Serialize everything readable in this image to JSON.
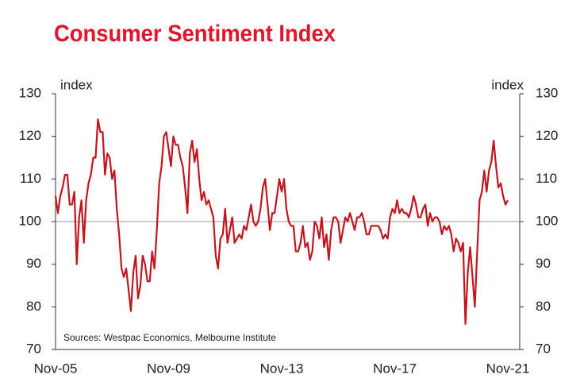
{
  "chart_data": {
    "type": "line",
    "title": "Consumer Sentiment Index",
    "y_label": "index",
    "y2_label": "index",
    "annotation": "Sources: Westpac Economics, Melbourne Institute",
    "categories": [
      "Nov-05",
      null,
      null,
      null,
      null,
      null,
      null,
      null,
      null,
      null,
      null,
      null,
      null,
      null,
      null,
      null,
      null,
      null,
      null,
      null,
      null,
      null,
      null,
      null,
      null,
      null,
      null,
      null,
      null,
      null,
      null,
      null,
      null,
      null,
      null,
      null,
      null,
      null,
      null,
      null,
      null,
      null,
      null,
      null,
      null,
      null,
      null,
      null,
      "Nov-09",
      null,
      null,
      null,
      null,
      null,
      null,
      null,
      null,
      null,
      null,
      null,
      null,
      null,
      null,
      null,
      null,
      null,
      null,
      null,
      null,
      null,
      null,
      null,
      null,
      null,
      null,
      null,
      null,
      null,
      null,
      null,
      null,
      null,
      null,
      null,
      null,
      null,
      null,
      null,
      null,
      null,
      null,
      null,
      null,
      null,
      null,
      null,
      "Nov-13",
      null,
      null,
      null,
      null,
      null,
      null,
      null,
      null,
      null,
      null,
      null,
      null,
      null,
      null,
      null,
      null,
      null,
      null,
      null,
      null,
      null,
      null,
      null,
      null,
      null,
      null,
      null,
      null,
      null,
      null,
      null,
      null,
      null,
      null,
      null,
      null,
      null,
      null,
      null,
      null,
      null,
      null,
      null,
      null,
      null,
      null,
      null,
      "Nov-17",
      null,
      null,
      null,
      null,
      null,
      null,
      null,
      null,
      null,
      null,
      null,
      null,
      null,
      null,
      null,
      null,
      null,
      null,
      null,
      null,
      null,
      null,
      null,
      null,
      null,
      null,
      null,
      null,
      null,
      null,
      null,
      null,
      null,
      null,
      null,
      null,
      null,
      null,
      null,
      null,
      null,
      null,
      null,
      null,
      null,
      null,
      null,
      "Nov-21"
    ],
    "series": [
      {
        "name": "Consumer Sentiment Index",
        "color": "#c0161e",
        "values": [
          106,
          102,
          106,
          108,
          111,
          111,
          104,
          104,
          107,
          90,
          101,
          105,
          95,
          105,
          109,
          111,
          115,
          115,
          124,
          121,
          121,
          111,
          116,
          115,
          110,
          112,
          103,
          97,
          89,
          87,
          89,
          84,
          79,
          88,
          92,
          82,
          85,
          92,
          90,
          86,
          86,
          93,
          89,
          98,
          109,
          113,
          120,
          121,
          117,
          113,
          120,
          118,
          118,
          115,
          113,
          108,
          102,
          116,
          119,
          114,
          117,
          110,
          105,
          107,
          104,
          105,
          103,
          101,
          92,
          89,
          96,
          97,
          103,
          95,
          98,
          101,
          95,
          96,
          97,
          96,
          99,
          98,
          101,
          104,
          100,
          99,
          100,
          103,
          108,
          110,
          104,
          98,
          102,
          102,
          106,
          110,
          107,
          110,
          103,
          100,
          99,
          99,
          93,
          93,
          95,
          99,
          94,
          95,
          91,
          93,
          100,
          99,
          96,
          101,
          94,
          97,
          91,
          98,
          101,
          101,
          100,
          95,
          98,
          101,
          100,
          102,
          100,
          98,
          101,
          101,
          102,
          100,
          97,
          97,
          99,
          99,
          99,
          99,
          98,
          96,
          97,
          96,
          101,
          103,
          102,
          105,
          102,
          103,
          102,
          102,
          101,
          103,
          106,
          104,
          101,
          101,
          103,
          104,
          99,
          102,
          100,
          101,
          101,
          100,
          97,
          99,
          98,
          99,
          97,
          93,
          96,
          95,
          93,
          95,
          76,
          88,
          94,
          87,
          80,
          93,
          105,
          107,
          112,
          107,
          112,
          114,
          119,
          113,
          108,
          109,
          106,
          104,
          105
        ]
      }
    ],
    "reference_line": 100,
    "ylim": [
      70,
      130
    ],
    "yticks": [
      70,
      80,
      90,
      100,
      110,
      120,
      130
    ],
    "y2lim": [
      70,
      130
    ],
    "y2ticks": [
      70,
      80,
      90,
      100,
      110,
      120,
      130
    ]
  }
}
